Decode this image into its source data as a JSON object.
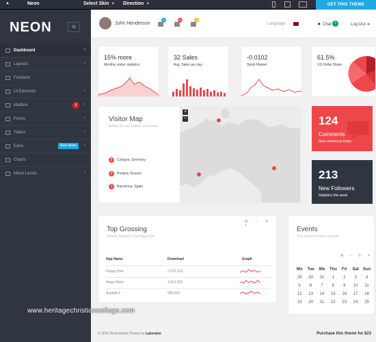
{
  "topbar": {
    "brand": "Neon",
    "select_skin": "Select Skin",
    "direction": "Direction",
    "get_theme": "GET THIS THEME"
  },
  "sidebar": {
    "logo": "NEON",
    "items": [
      {
        "label": "Dashboard",
        "icon": "gauge-icon",
        "active": true
      },
      {
        "label": "Layouts",
        "icon": "layout-icon"
      },
      {
        "label": "Frontend",
        "icon": "monitor-icon"
      },
      {
        "label": "UI Elements",
        "icon": "window-icon"
      },
      {
        "label": "Mailbox",
        "icon": "mail-icon",
        "badge": "8"
      },
      {
        "label": "Forms",
        "icon": "form-icon"
      },
      {
        "label": "Tables",
        "icon": "table-icon"
      },
      {
        "label": "Extra",
        "icon": "bag-icon",
        "badge": "New Items"
      },
      {
        "label": "Charts",
        "icon": "chart-icon"
      },
      {
        "label": "Menu Levels",
        "icon": "levels-icon"
      }
    ]
  },
  "header": {
    "username": "John Henderson",
    "badges": [
      "6",
      "10",
      "1"
    ],
    "language": "Language:",
    "chat": "Chat",
    "chat_count": "3",
    "logout": "Log Out"
  },
  "tiles": [
    {
      "value": "15% more",
      "label": "Monthly visitor statistics"
    },
    {
      "value": "32 Sales",
      "label": "Avg. Sales per day"
    },
    {
      "value": "-0.0102",
      "label": "Stock Market"
    },
    {
      "value": "61.5%",
      "label": "US Dollar Share"
    }
  ],
  "map": {
    "title": "Visitor Map",
    "subtitle": "Where do our visitors come from",
    "cities": [
      {
        "num": "3",
        "name": "Cologne, Germany"
      },
      {
        "num": "2",
        "name": "Pristina, Kosovo"
      },
      {
        "num": "1",
        "name": "Barcelona, Spain"
      }
    ]
  },
  "comments": {
    "value": "124",
    "label": "Comments",
    "sub": "New comments today"
  },
  "followers": {
    "value": "213",
    "label": "New Followers",
    "sub": "Statistics this week"
  },
  "grossing": {
    "title": "Top Grossing",
    "subtitle": "Weekly statistics from AppStore",
    "headers": [
      "App Name",
      "Download",
      "Graph"
    ],
    "rows": [
      {
        "name": "Flappy Bird",
        "download": "2,215,215"
      },
      {
        "name": "Angry Birds",
        "download": "1,001,001"
      },
      {
        "name": "Asphalt 8",
        "download": "998,003"
      }
    ]
  },
  "events": {
    "title": "Events",
    "subtitle": "This month's event calendar",
    "days": [
      "Mo",
      "Tue",
      "We",
      "Thu",
      "Fri",
      "Sat",
      "Sun"
    ],
    "weeks": [
      [
        "",
        "",
        "",
        "",
        "",
        "",
        ""
      ],
      [
        "29",
        "30",
        "31",
        "1",
        "2",
        "3",
        "4"
      ],
      [
        "5",
        "6",
        "7",
        "8",
        "9",
        "10",
        "11"
      ],
      [
        "12",
        "13",
        "14",
        "15",
        "16",
        "17",
        "18"
      ],
      [
        "19",
        "20",
        "21",
        "22",
        "23",
        "24",
        "25"
      ]
    ]
  },
  "footer": {
    "copyright": "© 2015 Neon Admin Theme by",
    "author": "Laborator",
    "purchase": "Purchase this theme for $23"
  },
  "watermark": "www.heritagechristiancollege.com",
  "colors": {
    "accent": "#21a9e1",
    "red": "#ee4749",
    "dark": "#303641"
  }
}
